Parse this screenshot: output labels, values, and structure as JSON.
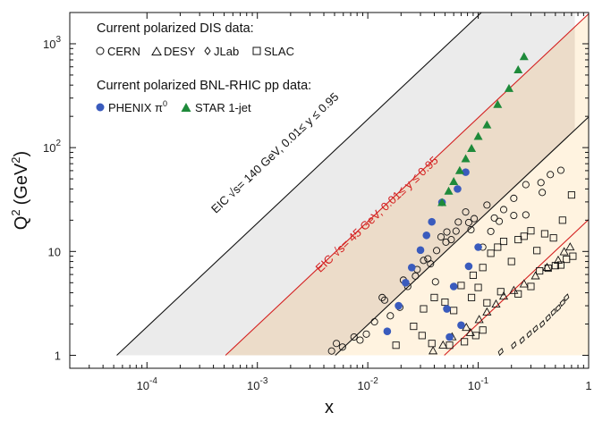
{
  "chart_data": {
    "type": "scatter",
    "xlabel": "x",
    "ylabel": "Q",
    "ylabel_sup": "2",
    "ylabel_unit": "(GeV",
    "ylabel_unit_sup": "2",
    "ylabel_unit_close": ")",
    "xscale": "log",
    "yscale": "log",
    "xlim": [
      2e-05,
      1
    ],
    "ylim": [
      0.75,
      2000
    ],
    "xticks": [
      {
        "base": "10",
        "exp": "-4",
        "value": 0.0001
      },
      {
        "base": "10",
        "exp": "-3",
        "value": 0.001
      },
      {
        "base": "10",
        "exp": "-2",
        "value": 0.01
      },
      {
        "base": "10",
        "exp": "-1",
        "value": 0.1
      },
      {
        "base": "1",
        "exp": "",
        "value": 1
      }
    ],
    "yticks": [
      {
        "base": "1",
        "exp": "",
        "value": 1
      },
      {
        "base": "10",
        "exp": "",
        "value": 10
      },
      {
        "base": "10",
        "exp": "2",
        "value": 100
      },
      {
        "base": "10",
        "exp": "3",
        "value": 1000
      }
    ],
    "regions": [
      {
        "label": "EIC √s= 140 GeV, 0.01≤ y ≤ 0.95",
        "line_color": "#111111",
        "fill": "#ebebeb",
        "lower_line": [
          [
            5.33e-05,
            1
          ],
          [
            0.7,
            13100
          ]
        ],
        "upper_line": [
          [
            0.00508,
            1
          ],
          [
            0.75,
            148
          ]
        ]
      },
      {
        "label": "EIC √s= 45 GeV, 0.01≤ y ≤ 0.95",
        "line_color": "#d42020",
        "fill": "#ecdcc9",
        "lower_line": [
          [
            0.000515,
            1
          ],
          [
            0.6,
            1165
          ]
        ],
        "upper_line": [
          [
            0.0493,
            1
          ],
          [
            0.75,
            15.2
          ]
        ]
      }
    ],
    "physical_region_fill": "#fff3e0",
    "legend": {
      "dis_header": "Current polarized DIS data:",
      "dis_entries": [
        "CERN",
        "DESY",
        "JLab",
        "SLAC"
      ],
      "pp_header": "Current polarized BNL-RHIC pp data:",
      "pp_entries": [
        {
          "name": "PHENIX π",
          "sup": "0"
        },
        {
          "name": "STAR 1-jet",
          "sup": ""
        }
      ]
    },
    "series": [
      {
        "name": "CERN",
        "marker": "circle-open",
        "color": "#111111",
        "points": [
          [
            0.0047,
            1.1
          ],
          [
            0.0052,
            1.3
          ],
          [
            0.0059,
            1.2
          ],
          [
            0.0075,
            1.5
          ],
          [
            0.0085,
            1.4
          ],
          [
            0.0097,
            1.6
          ],
          [
            0.0115,
            2.1
          ],
          [
            0.0135,
            3.6
          ],
          [
            0.0142,
            3.4
          ],
          [
            0.016,
            2.4
          ],
          [
            0.0195,
            2.9
          ],
          [
            0.023,
            4.6
          ],
          [
            0.027,
            5.8
          ],
          [
            0.028,
            6.7
          ],
          [
            0.035,
            8.5
          ],
          [
            0.037,
            7.6
          ],
          [
            0.041,
            5.1
          ],
          [
            0.046,
            13.8
          ],
          [
            0.052,
            15.4
          ],
          [
            0.057,
            13.0
          ],
          [
            0.066,
            19.2
          ],
          [
            0.077,
            24.0
          ],
          [
            0.086,
            16.2
          ],
          [
            0.092,
            20.7
          ],
          [
            0.12,
            28.0
          ],
          [
            0.14,
            21.0
          ],
          [
            0.17,
            25.3
          ],
          [
            0.21,
            32.5
          ],
          [
            0.27,
            44.0
          ],
          [
            0.37,
            46.0
          ],
          [
            0.45,
            55.0
          ],
          [
            0.56,
            60.5
          ],
          [
            0.021,
            5.3
          ],
          [
            0.032,
            8.2
          ],
          [
            0.042,
            10.2
          ],
          [
            0.051,
            12.3
          ],
          [
            0.063,
            15.7
          ],
          [
            0.082,
            19.0
          ],
          [
            0.11,
            11.0
          ],
          [
            0.13,
            15.6
          ],
          [
            0.155,
            19.5
          ],
          [
            0.21,
            22.2
          ],
          [
            0.27,
            22.5
          ],
          [
            0.38,
            37.0
          ]
        ]
      },
      {
        "name": "DESY",
        "marker": "triangle-open",
        "color": "#111111",
        "points": [
          [
            0.039,
            1.1
          ],
          [
            0.048,
            1.25
          ],
          [
            0.058,
            1.5
          ],
          [
            0.078,
            1.85
          ],
          [
            0.085,
            1.65
          ],
          [
            0.102,
            2.2
          ],
          [
            0.12,
            2.6
          ],
          [
            0.145,
            3.1
          ],
          [
            0.17,
            3.7
          ],
          [
            0.21,
            4.2
          ],
          [
            0.26,
            4.85
          ],
          [
            0.33,
            5.8
          ],
          [
            0.42,
            7.0
          ],
          [
            0.53,
            8.2
          ],
          [
            0.6,
            9.9
          ],
          [
            0.68,
            11.0
          ]
        ]
      },
      {
        "name": "JLab",
        "marker": "diamond-open",
        "color": "#111111",
        "points": [
          [
            0.16,
            1.08
          ],
          [
            0.21,
            1.25
          ],
          [
            0.25,
            1.4
          ],
          [
            0.29,
            1.6
          ],
          [
            0.33,
            1.8
          ],
          [
            0.38,
            2.0
          ],
          [
            0.43,
            2.3
          ],
          [
            0.48,
            2.6
          ],
          [
            0.53,
            2.85
          ],
          [
            0.58,
            3.2
          ],
          [
            0.63,
            3.6
          ]
        ]
      },
      {
        "name": "SLAC",
        "marker": "square-open",
        "color": "#111111",
        "points": [
          [
            0.018,
            1.25
          ],
          [
            0.026,
            1.9
          ],
          [
            0.031,
            1.55
          ],
          [
            0.032,
            2.8
          ],
          [
            0.04,
            3.6
          ],
          [
            0.05,
            3.25
          ],
          [
            0.06,
            2.7
          ],
          [
            0.07,
            4.7
          ],
          [
            0.087,
            3.6
          ],
          [
            0.09,
            5.9
          ],
          [
            0.1,
            4.5
          ],
          [
            0.11,
            7.0
          ],
          [
            0.13,
            9.6
          ],
          [
            0.15,
            11.0
          ],
          [
            0.17,
            12.5
          ],
          [
            0.2,
            8.0
          ],
          [
            0.23,
            13.0
          ],
          [
            0.26,
            14.0
          ],
          [
            0.3,
            15.8
          ],
          [
            0.34,
            10.2
          ],
          [
            0.4,
            14.8
          ],
          [
            0.48,
            13.5
          ],
          [
            0.58,
            20.0
          ],
          [
            0.7,
            35.0
          ],
          [
            0.12,
            3.2
          ],
          [
            0.16,
            4.1
          ],
          [
            0.23,
            3.9
          ],
          [
            0.3,
            4.6
          ],
          [
            0.36,
            6.5
          ],
          [
            0.43,
            6.9
          ],
          [
            0.5,
            7.3
          ],
          [
            0.56,
            7.4
          ],
          [
            0.63,
            8.4
          ],
          [
            0.72,
            9.0
          ],
          [
            0.075,
            1.35
          ],
          [
            0.095,
            1.55
          ],
          [
            0.11,
            1.75
          ],
          [
            0.055,
            1.25
          ],
          [
            0.038,
            1.3
          ]
        ]
      },
      {
        "name": "PHENIX π0",
        "marker": "circle-filled",
        "color": "#3a5bbd",
        "points": [
          [
            0.015,
            1.7
          ],
          [
            0.019,
            3.0
          ],
          [
            0.022,
            5.0
          ],
          [
            0.025,
            7.0
          ],
          [
            0.03,
            10.3
          ],
          [
            0.034,
            14.3
          ],
          [
            0.038,
            19.3
          ],
          [
            0.047,
            29.7
          ],
          [
            0.055,
            1.5
          ],
          [
            0.052,
            2.8
          ],
          [
            0.06,
            4.6
          ],
          [
            0.065,
            40.0
          ],
          [
            0.07,
            1.95
          ],
          [
            0.077,
            58.0
          ],
          [
            0.082,
            7.2
          ],
          [
            0.1,
            11.0
          ]
        ]
      },
      {
        "name": "STAR 1-jet",
        "marker": "triangle-filled",
        "color": "#1e8a3a",
        "points": [
          [
            0.047,
            29.5
          ],
          [
            0.054,
            38.0
          ],
          [
            0.06,
            47.0
          ],
          [
            0.068,
            60.0
          ],
          [
            0.077,
            78.0
          ],
          [
            0.087,
            98.0
          ],
          [
            0.1,
            128.0
          ],
          [
            0.12,
            165.0
          ],
          [
            0.15,
            260.0
          ],
          [
            0.19,
            370.0
          ],
          [
            0.23,
            560.0
          ],
          [
            0.26,
            750.0
          ]
        ]
      }
    ]
  }
}
